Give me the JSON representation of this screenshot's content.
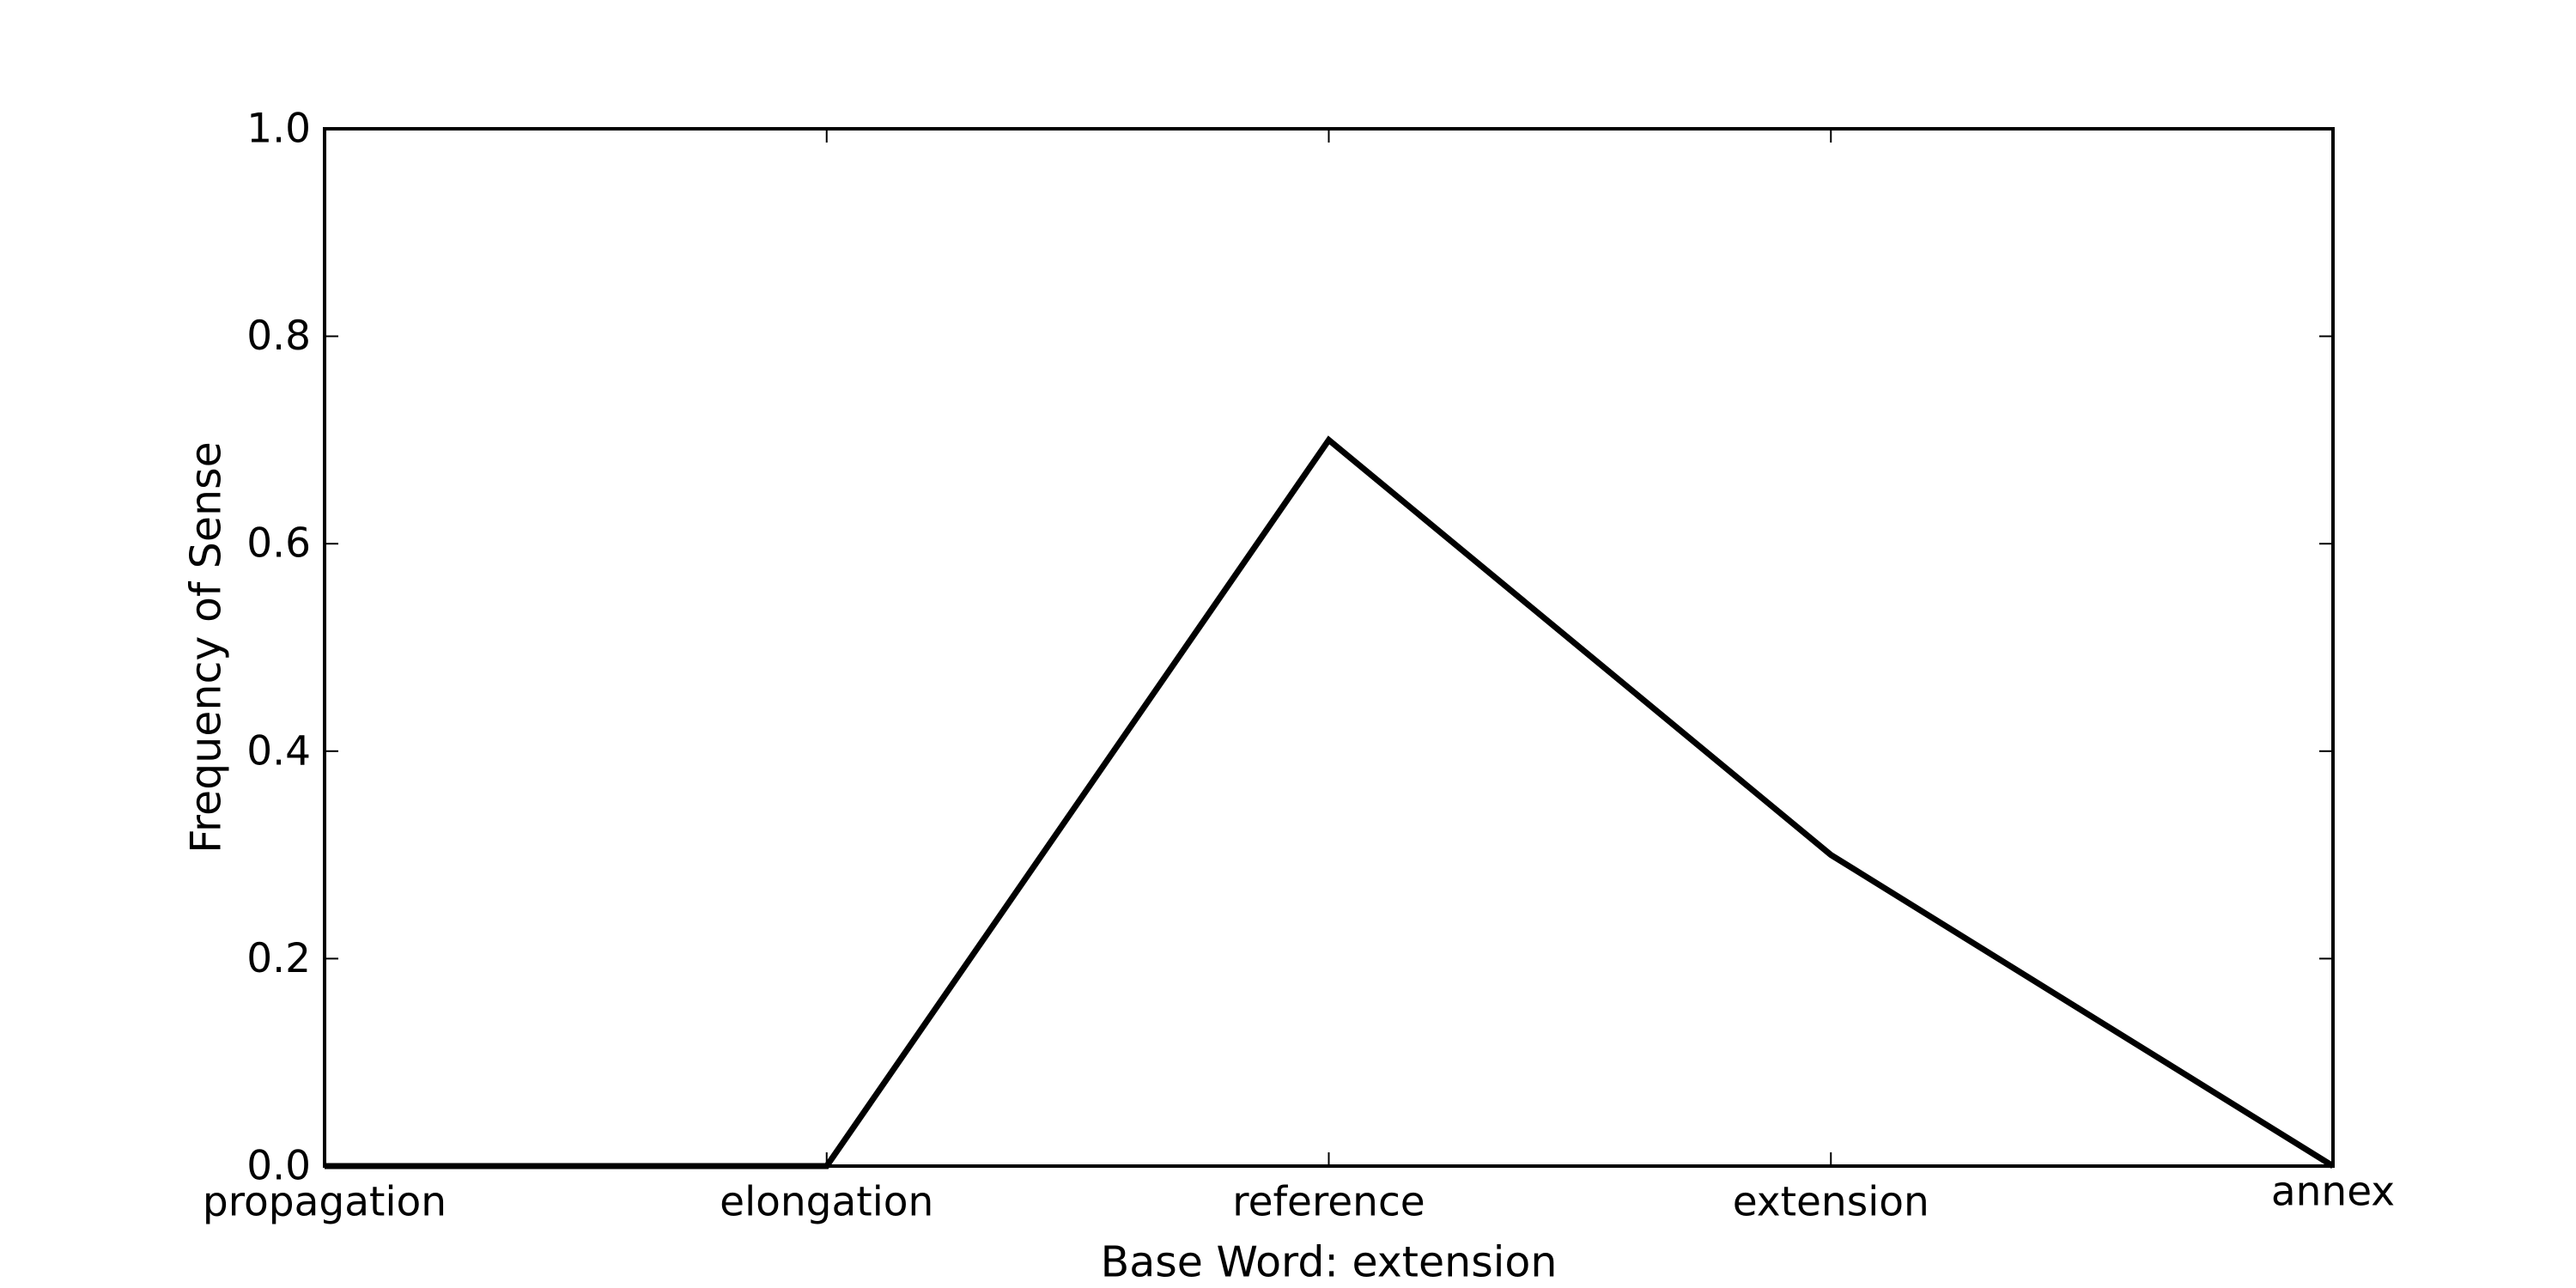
{
  "chart_data": {
    "type": "line",
    "categories": [
      "propagation",
      "elongation",
      "reference",
      "extension",
      "annex"
    ],
    "series": [
      {
        "name": "Frequency of Sense",
        "values": [
          0.0,
          0.0,
          0.7,
          0.3,
          0.0
        ],
        "color": "#000000"
      }
    ],
    "xlabel": "Base Word: extension",
    "ylabel": "Frequency of Sense",
    "ylim": [
      0.0,
      1.0
    ],
    "yticks": [
      0.0,
      0.2,
      0.4,
      0.6,
      0.8,
      1.0
    ],
    "ytick_labels": [
      "0.0",
      "0.2",
      "0.4",
      "0.6",
      "0.8",
      "1.0"
    ],
    "grid": false,
    "legend": false
  }
}
